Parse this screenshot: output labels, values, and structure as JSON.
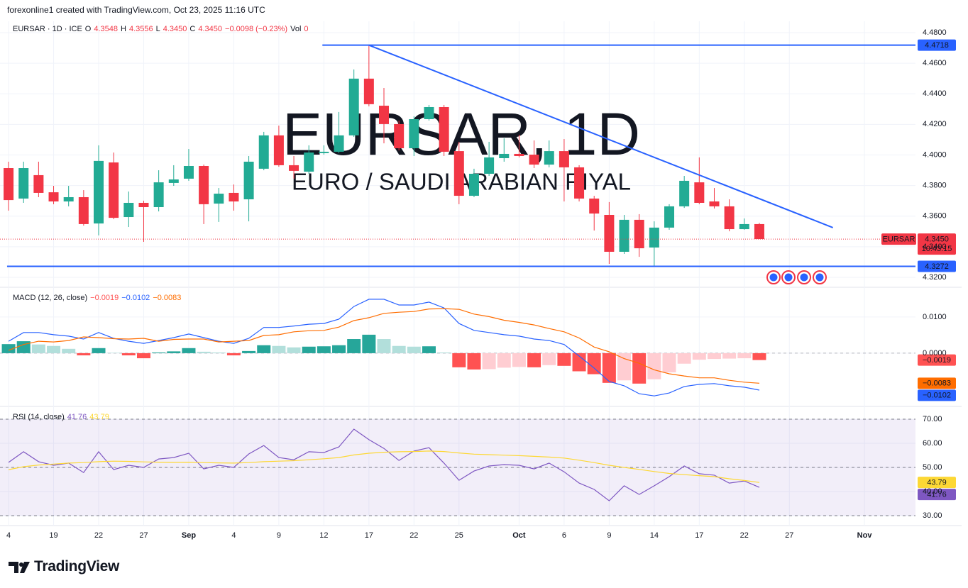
{
  "header": {
    "credit": "forexonline1 created with TradingView.com, Oct 23, 2025 11:16 UTC"
  },
  "footer": {
    "logo": "TradingView"
  },
  "chart_data": [
    {
      "type": "candlestick",
      "watermark": "EURSAR, 1D",
      "watermark_sub": "EURO / SAUDI ARABIAN RIYAL",
      "legend": {
        "symbol": "EURSAR · 1D · ICE",
        "items": [
          {
            "key": "O",
            "value": "4.3548"
          },
          {
            "key": "H",
            "value": "4.3556"
          },
          {
            "key": "L",
            "value": "4.3450"
          },
          {
            "key": "C",
            "value": "4.3450"
          }
        ],
        "change": "−0.0098 (−0.23%)",
        "vol_key": "Vol",
        "vol": 0
      },
      "up_color": "#22ab94",
      "down_color": "#f23645",
      "open": [
        4.3914,
        4.3715,
        4.3868,
        4.3756,
        4.3696,
        4.3724,
        4.3552,
        4.3951,
        4.3594,
        4.3687,
        4.3659,
        4.3817,
        4.3845,
        4.3928,
        4.3682,
        4.3752,
        4.371,
        4.391,
        4.4128,
        4.3933,
        4.3891,
        4.4012,
        4.4021,
        4.4128,
        4.4499,
        4.4322,
        4.4202,
        4.4044,
        4.4234,
        4.4313,
        4.4025,
        4.3733,
        4.3877,
        4.3979,
        4.4007,
        4.4002,
        4.3937,
        4.4025,
        4.3919,
        4.3715,
        4.3608,
        4.3367,
        4.3576,
        4.3395,
        4.3525,
        4.3664,
        4.3821,
        4.3696,
        4.3664,
        4.3515,
        4.3548
      ],
      "high": [
        4.3956,
        4.3956,
        4.3956,
        4.3798,
        4.3798,
        4.377,
        4.4063,
        4.4016,
        4.3761,
        4.3701,
        4.39,
        4.3933,
        4.4039,
        4.3937,
        4.3784,
        4.3807,
        4.3993,
        4.4151,
        4.4192,
        4.3993,
        4.4063,
        4.4063,
        4.4281,
        4.4559,
        4.4718,
        4.4438,
        4.4225,
        4.4253,
        4.4327,
        4.4327,
        4.4086,
        4.391,
        4.4086,
        4.4109,
        4.4132,
        4.4095,
        4.4095,
        4.4104,
        4.3933,
        4.3733,
        4.3692,
        4.3608,
        4.3613,
        4.3566,
        4.3678,
        4.3863,
        4.3984,
        4.3784,
        4.371,
        4.3585,
        4.3556
      ],
      "low": [
        4.3636,
        4.3687,
        4.3724,
        4.3678,
        4.3664,
        4.3538,
        4.3474,
        4.358,
        4.3529,
        4.3432,
        4.3631,
        4.3798,
        4.3831,
        4.3548,
        4.3562,
        4.3636,
        4.3566,
        4.39,
        4.3923,
        4.3845,
        4.3877,
        4.4002,
        4.4012,
        4.4118,
        4.4318,
        4.4076,
        4.403,
        4.3993,
        4.4225,
        4.3993,
        4.3678,
        4.3724,
        4.3863,
        4.3956,
        4.3984,
        4.3914,
        4.3919,
        4.3696,
        4.3696,
        4.3506,
        4.3288,
        4.3353,
        4.3334,
        4.3272,
        4.3511,
        4.3654,
        4.3678,
        4.365,
        4.3501,
        4.3511,
        4.345
      ],
      "close": [
        4.3705,
        4.3914,
        4.3752,
        4.3696,
        4.3724,
        4.3548,
        4.3961,
        4.3589,
        4.3687,
        4.3659,
        4.3821,
        4.384,
        4.3928,
        4.3678,
        4.3747,
        4.3696,
        4.3956,
        4.4128,
        4.3933,
        4.3896,
        4.4016,
        4.4021,
        4.4128,
        4.4499,
        4.4332,
        4.4202,
        4.4044,
        4.4234,
        4.4313,
        4.4021,
        4.3733,
        4.3877,
        4.3984,
        4.4007,
        4.3993,
        4.3937,
        4.4025,
        4.3919,
        4.3715,
        4.3617,
        4.3367,
        4.3576,
        4.339,
        4.3525,
        4.3664,
        4.3831,
        4.3687,
        4.3664,
        4.3515,
        4.3548,
        4.345
      ],
      "ylim": [
        4.3135,
        4.4874
      ],
      "yticks": [
        {
          "value": 4.48,
          "label": "4.4800"
        },
        {
          "value": 4.46,
          "label": "4.4600"
        },
        {
          "value": 4.44,
          "label": "4.4400"
        },
        {
          "value": 4.42,
          "label": "4.4200"
        },
        {
          "value": 4.4,
          "label": "4.4000"
        },
        {
          "value": 4.38,
          "label": "4.3800"
        },
        {
          "value": 4.36,
          "label": "4.3600"
        },
        {
          "value": 4.34,
          "label": "4.3400"
        },
        {
          "value": 4.32,
          "label": "4.3200"
        }
      ],
      "xlim": [
        -0.57,
        60.4
      ],
      "xticks": [
        {
          "value": 0,
          "label": "4"
        },
        {
          "value": 3,
          "label": "19"
        },
        {
          "value": 6,
          "label": "22"
        },
        {
          "value": 9,
          "label": "27"
        },
        {
          "value": 12,
          "label": "Sep"
        },
        {
          "value": 15,
          "label": "4"
        },
        {
          "value": 18,
          "label": "9"
        },
        {
          "value": 21,
          "label": "12"
        },
        {
          "value": 24,
          "label": "17"
        },
        {
          "value": 27,
          "label": "22"
        },
        {
          "value": 30,
          "label": "25"
        },
        {
          "value": 34,
          "label": "Oct"
        },
        {
          "value": 37,
          "label": "6"
        },
        {
          "value": 40,
          "label": "9"
        },
        {
          "value": 43,
          "label": "14"
        },
        {
          "value": 46,
          "label": "17"
        },
        {
          "value": 49,
          "label": "22"
        },
        {
          "value": 52,
          "label": "27"
        },
        {
          "value": 57,
          "label": "Nov"
        }
      ],
      "grid": true,
      "hlines": [
        {
          "value": 4.4718,
          "x0": 20.9,
          "color": "#2962ff"
        },
        {
          "value": 4.3272,
          "x0": -0.1,
          "color": "#2962ff"
        }
      ],
      "trendline": {
        "x": [
          24,
          54.9
        ],
        "y": [
          4.4718,
          4.3525
        ],
        "color": "#2962ff"
      },
      "last_price": {
        "value": 4.345,
        "label": "4.3450",
        "symbol": "EURSAR",
        "countdown": "10:43:15"
      }
    },
    {
      "type": "combo",
      "legend_title": "MACD (12, 26, close)",
      "ylim": [
        -0.0147,
        0.0182
      ],
      "yticks": [
        {
          "value": 0.01,
          "label": "0.0100"
        },
        {
          "value": 0,
          "label": "0.0000"
        }
      ],
      "zero_line": true,
      "colors": {
        "grow_above": "#26a69a",
        "fall_above": "#b2dfdb",
        "grow_below": "#ffcdd2",
        "fall_below": "#ff5252"
      },
      "series": [
        {
          "type": "bar",
          "color": "#ff5252",
          "last_value_label": "−0.0019",
          "values": [
            0.0025,
            0.0033,
            0.0024,
            0.002,
            0.0012,
            -0.0006,
            0.0014,
            0.0001,
            -0.0006,
            -0.0014,
            0.0002,
            0.0005,
            0.0014,
            0.0004,
            0.0002,
            -0.0006,
            0.0006,
            0.0022,
            0.002,
            0.0016,
            0.0018,
            0.0019,
            0.0022,
            0.0039,
            0.0051,
            0.0039,
            0.002,
            0.0018,
            0.0019,
            0.0002,
            -0.0039,
            -0.0045,
            -0.0044,
            -0.004,
            -0.0038,
            -0.0039,
            -0.0033,
            -0.0035,
            -0.005,
            -0.0058,
            -0.0082,
            -0.0075,
            -0.0084,
            -0.0072,
            -0.0053,
            -0.0029,
            -0.0018,
            -0.0016,
            -0.0015,
            -0.0014,
            -0.0019
          ]
        },
        {
          "type": "line",
          "color": "#2962ff",
          "last_value_label": "−0.0102",
          "values": [
            0.0033,
            0.0057,
            0.0057,
            0.0051,
            0.0047,
            0.0039,
            0.0057,
            0.0041,
            0.0033,
            0.0027,
            0.0035,
            0.0043,
            0.0053,
            0.0043,
            0.0033,
            0.0027,
            0.0041,
            0.0071,
            0.0071,
            0.0075,
            0.008,
            0.0082,
            0.0094,
            0.0129,
            0.0149,
            0.0149,
            0.0133,
            0.0133,
            0.0141,
            0.0125,
            0.0082,
            0.0063,
            0.0057,
            0.0051,
            0.0047,
            0.0039,
            0.0035,
            0.0024,
            -0.0008,
            -0.0041,
            -0.0078,
            -0.009,
            -0.0112,
            -0.0118,
            -0.011,
            -0.0092,
            -0.0086,
            -0.0084,
            -0.009,
            -0.0094,
            -0.0102
          ]
        },
        {
          "type": "line",
          "color": "#ff6d00",
          "last_value_label": "−0.0083",
          "values": [
            0.0008,
            0.0024,
            0.0033,
            0.0031,
            0.0035,
            0.0045,
            0.0043,
            0.004,
            0.0039,
            0.0041,
            0.0033,
            0.0038,
            0.0039,
            0.0039,
            0.0031,
            0.0033,
            0.0035,
            0.0049,
            0.0051,
            0.0059,
            0.0062,
            0.0063,
            0.0072,
            0.009,
            0.0098,
            0.011,
            0.0113,
            0.0115,
            0.0122,
            0.0123,
            0.0121,
            0.0108,
            0.0101,
            0.0091,
            0.0085,
            0.0078,
            0.0068,
            0.0059,
            0.0042,
            0.0017,
            0.0004,
            -0.0015,
            -0.0028,
            -0.0046,
            -0.0057,
            -0.0063,
            -0.0068,
            -0.0068,
            -0.0075,
            -0.008,
            -0.0083
          ]
        }
      ]
    },
    {
      "type": "line",
      "legend_title": "RSI (14, close)",
      "ylim": [
        25.9,
        75.3
      ],
      "yticks": [
        {
          "value": 70,
          "label": "70.00"
        },
        {
          "value": 60,
          "label": "60.00"
        },
        {
          "value": 50,
          "label": "50.00"
        },
        {
          "value": 40,
          "label": "40.00"
        },
        {
          "value": 30,
          "label": "30.00"
        }
      ],
      "levels": [
        70,
        50,
        30
      ],
      "band_color": "rgba(126,87,194,0.1)",
      "series": [
        {
          "color": "#7e57c2",
          "values": [
            52.1,
            56.5,
            52.4,
            50.9,
            51.8,
            47.9,
            56.5,
            49.1,
            50.9,
            50.0,
            53.5,
            54.1,
            55.9,
            49.4,
            50.9,
            50.0,
            55.6,
            59.1,
            54.1,
            53.2,
            56.5,
            56.2,
            58.5,
            65.9,
            61.5,
            57.9,
            52.9,
            56.8,
            58.2,
            51.8,
            44.7,
            48.5,
            50.6,
            51.2,
            50.9,
            49.4,
            51.8,
            48.2,
            43.5,
            40.9,
            36.2,
            42.4,
            38.8,
            42.4,
            46.2,
            50.6,
            47.4,
            46.8,
            43.5,
            44.4,
            41.76
          ]
        },
        {
          "color": "#fdd835",
          "values": [
            49.1,
            50.3,
            51.0,
            51.4,
            51.8,
            52.0,
            52.4,
            52.6,
            52.5,
            52.3,
            52.2,
            52.1,
            52.2,
            52.0,
            51.9,
            51.8,
            52.0,
            52.4,
            52.6,
            52.8,
            53.2,
            53.6,
            54.1,
            55.2,
            55.9,
            56.3,
            56.5,
            56.6,
            56.8,
            56.6,
            56.0,
            55.5,
            55.3,
            55.1,
            54.9,
            54.6,
            54.3,
            53.9,
            53.0,
            52.0,
            50.9,
            50.0,
            49.2,
            48.3,
            47.5,
            47.0,
            46.6,
            46.2,
            45.3,
            44.6,
            43.79
          ]
        }
      ]
    }
  ]
}
